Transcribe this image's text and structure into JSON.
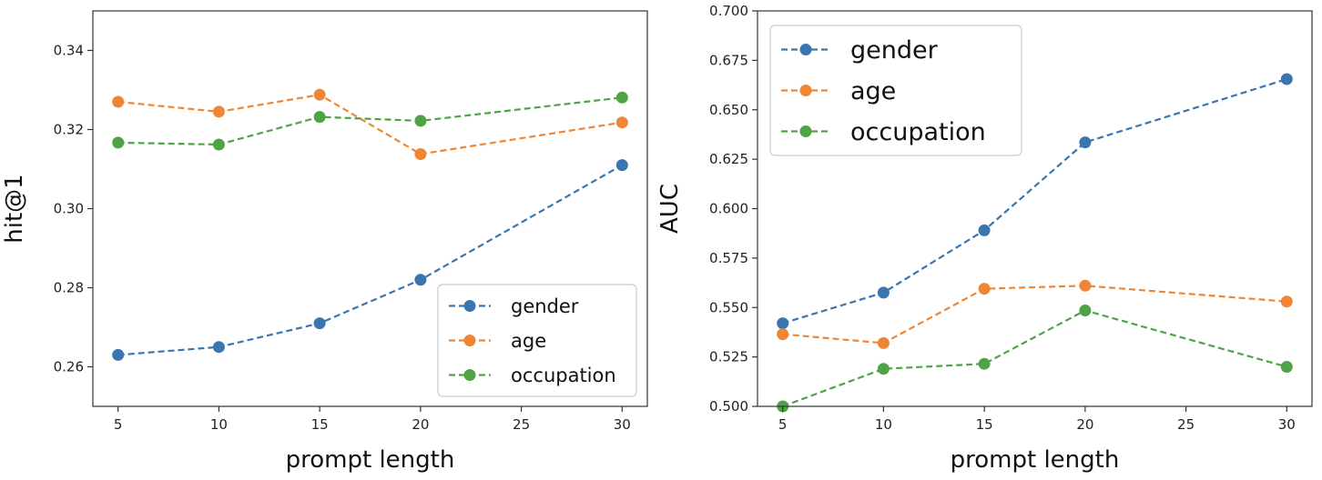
{
  "chart_data": [
    {
      "type": "line",
      "title": "",
      "xlabel": "prompt length",
      "ylabel": "hit@1",
      "x": [
        5,
        10,
        15,
        20,
        30
      ],
      "xticks": [
        5,
        10,
        15,
        20,
        25,
        30
      ],
      "xtick_labels": [
        "5",
        "10",
        "15",
        "20",
        "25",
        "30"
      ],
      "xlim": [
        3.75,
        31.25
      ],
      "ylim": [
        0.25,
        0.35
      ],
      "yticks": [
        0.26,
        0.28,
        0.3,
        0.32,
        0.34
      ],
      "ytick_labels": [
        "0.26",
        "0.28",
        "0.30",
        "0.32",
        "0.34"
      ],
      "legend_position": "lower-right",
      "legend_size": "small",
      "series": [
        {
          "name": "gender",
          "color": "#3a75b0",
          "values": [
            0.263,
            0.265,
            0.271,
            0.282,
            0.311
          ]
        },
        {
          "name": "age",
          "color": "#ef8636",
          "values": [
            0.327,
            0.3245,
            0.3288,
            0.3138,
            0.3218
          ]
        },
        {
          "name": "occupation",
          "color": "#4fa346",
          "values": [
            0.3167,
            0.3162,
            0.3232,
            0.3222,
            0.3281
          ]
        }
      ]
    },
    {
      "type": "line",
      "title": "",
      "xlabel": "prompt length",
      "ylabel": "AUC",
      "x": [
        5,
        10,
        15,
        20,
        30
      ],
      "xticks": [
        5,
        10,
        15,
        20,
        25,
        30
      ],
      "xtick_labels": [
        "5",
        "10",
        "15",
        "20",
        "25",
        "30"
      ],
      "xlim": [
        3.75,
        31.25
      ],
      "ylim": [
        0.5,
        0.7
      ],
      "yticks": [
        0.5,
        0.525,
        0.55,
        0.575,
        0.6,
        0.625,
        0.65,
        0.675,
        0.7
      ],
      "ytick_labels": [
        "0.500",
        "0.525",
        "0.550",
        "0.575",
        "0.600",
        "0.625",
        "0.650",
        "0.675",
        "0.700"
      ],
      "legend_position": "top-left",
      "legend_size": "large",
      "series": [
        {
          "name": "gender",
          "color": "#3a75b0",
          "values": [
            0.542,
            0.5575,
            0.589,
            0.6335,
            0.6655
          ]
        },
        {
          "name": "age",
          "color": "#ef8636",
          "values": [
            0.5365,
            0.532,
            0.5595,
            0.561,
            0.553
          ]
        },
        {
          "name": "occupation",
          "color": "#4fa346",
          "values": [
            0.5,
            0.519,
            0.5215,
            0.5485,
            0.52
          ]
        }
      ]
    }
  ]
}
